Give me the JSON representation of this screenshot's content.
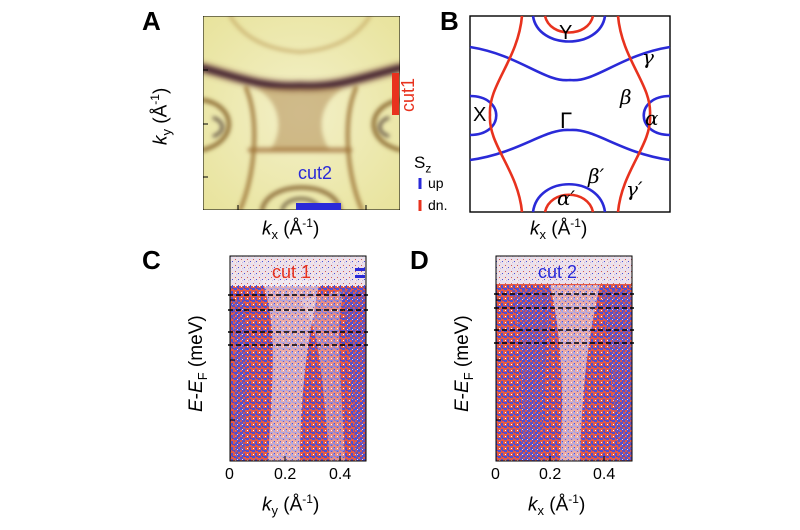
{
  "panel_a": {
    "label": "A",
    "ylabel_k": "k",
    "ylabel_sub": "y",
    "ylabel_unit": " (Å",
    "ylabel_exp": "-1",
    "ylabel_close": ")",
    "xlabel_k": "k",
    "xlabel_sub": "x",
    "xlabel_unit": " (Å",
    "xlabel_exp": "-1",
    "xlabel_close": ")",
    "cut1_label": "cut1",
    "cut2_label": "cut2"
  },
  "panel_b": {
    "label": "B",
    "points": {
      "Y": "Y",
      "X": "X",
      "Gamma": "Γ"
    },
    "bands": {
      "gamma": "γ",
      "beta": "β",
      "alpha": "α",
      "beta_prime": "β′",
      "gamma_prime": "γ′",
      "alpha_prime": "α′"
    },
    "legend": {
      "title_main": "S",
      "title_sub": "z",
      "up": "up",
      "dn": "dn."
    },
    "xlabel_k": "k",
    "xlabel_sub": "x",
    "xlabel_unit": " (Å",
    "xlabel_exp": "-1",
    "xlabel_close": ")",
    "colors": {
      "up": "#2a2ad8",
      "dn": "#e8321e"
    }
  },
  "panel_c": {
    "label": "C",
    "title": "cut 1",
    "ylabel_e": "E",
    "ylabel_mid": "-",
    "ylabel_e2": "E",
    "ylabel_sub": "F",
    "ylabel_unit": " (meV)",
    "xlabel_k": "k",
    "xlabel_sub": "y",
    "xlabel_unit": " (Å",
    "xlabel_exp": "-1",
    "xlabel_close": ")",
    "xticks": [
      "0",
      "0.2",
      "0.4"
    ]
  },
  "panel_d": {
    "label": "D",
    "title": "cut 2",
    "ylabel_e": "E",
    "ylabel_mid": "-",
    "ylabel_e2": "E",
    "ylabel_sub": "F",
    "ylabel_unit": " (meV)",
    "xlabel_k": "k",
    "xlabel_sub": "x",
    "xlabel_unit": " (Å",
    "xlabel_exp": "-1",
    "xlabel_close": ")",
    "xticks": [
      "0",
      "0.2",
      "0.4"
    ]
  }
}
